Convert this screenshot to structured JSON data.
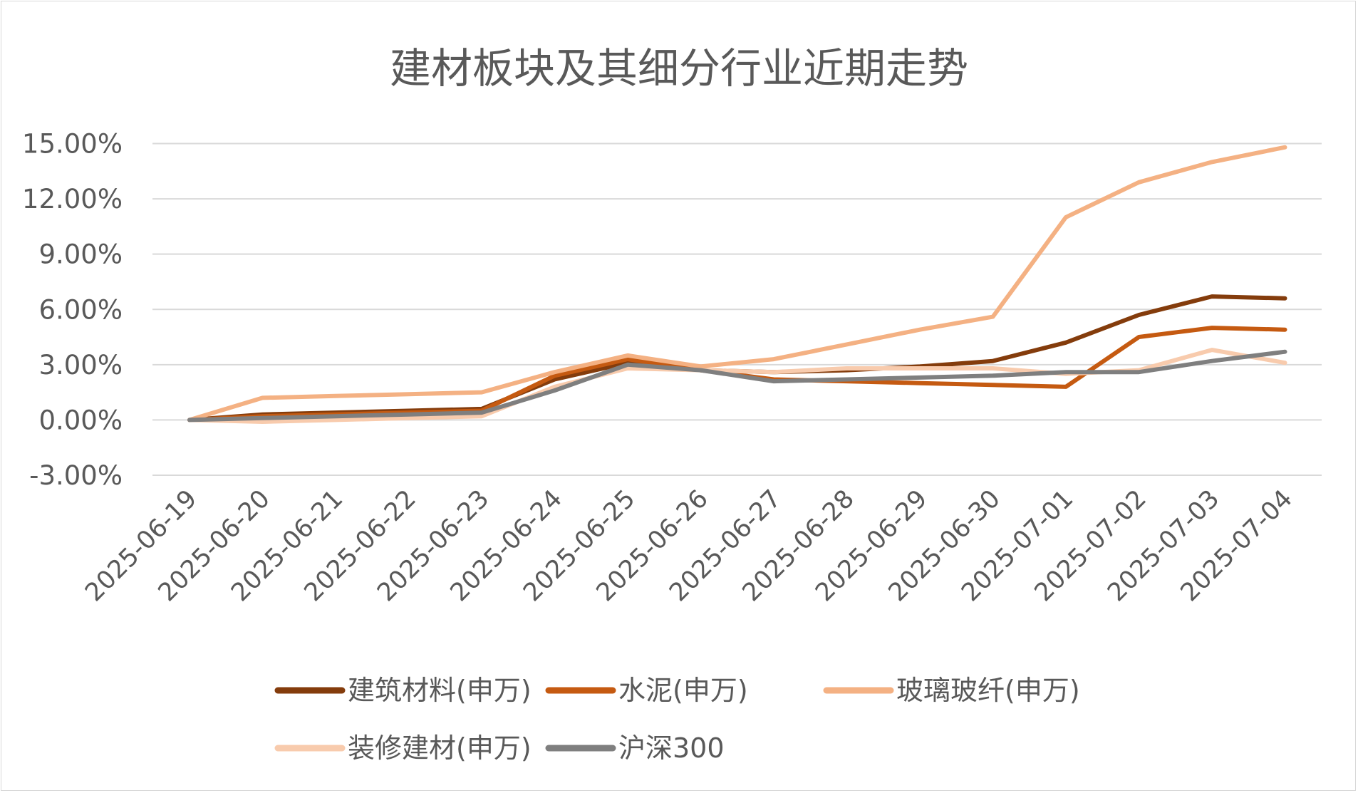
{
  "chart_data": {
    "type": "line",
    "title": "建材板块及其细分行业近期走势",
    "xlabel": "",
    "ylabel": "",
    "x": [
      "2025-06-19",
      "2025-06-20",
      "2025-06-21",
      "2025-06-22",
      "2025-06-23",
      "2025-06-24",
      "2025-06-25",
      "2025-06-26",
      "2025-06-27",
      "2025-06-28",
      "2025-06-29",
      "2025-06-30",
      "2025-07-01",
      "2025-07-02",
      "2025-07-03",
      "2025-07-04"
    ],
    "y_ticks": [
      "15.00%",
      "12.00%",
      "9.00%",
      "6.00%",
      "3.00%",
      "0.00%",
      "-3.00%"
    ],
    "y_tick_values": [
      15,
      12,
      9,
      6,
      3,
      0,
      -3
    ],
    "ylim": [
      -3,
      15
    ],
    "grid": true,
    "legend_position": "bottom",
    "series": [
      {
        "name": "建筑材料(申万)",
        "color": "#843c0c",
        "values": [
          0.0,
          0.3,
          0.4,
          0.5,
          0.6,
          2.2,
          3.1,
          2.7,
          2.6,
          2.7,
          2.9,
          3.2,
          4.2,
          5.7,
          6.7,
          6.6
        ]
      },
      {
        "name": "水泥(申万)",
        "color": "#c55a11",
        "values": [
          0.0,
          0.2,
          0.3,
          0.4,
          0.5,
          2.4,
          3.3,
          2.7,
          2.2,
          2.1,
          2.0,
          1.9,
          1.8,
          4.5,
          5.0,
          4.9
        ]
      },
      {
        "name": "玻璃玻纤(申万)",
        "color": "#f4b183",
        "values": [
          0.0,
          1.2,
          1.3,
          1.4,
          1.5,
          2.6,
          3.5,
          2.9,
          3.3,
          4.1,
          4.9,
          5.6,
          11.0,
          12.9,
          14.0,
          14.8
        ]
      },
      {
        "name": "装修建材(申万)",
        "color": "#f8cbad",
        "values": [
          0.0,
          -0.1,
          0.0,
          0.1,
          0.2,
          1.8,
          2.8,
          2.7,
          2.6,
          2.8,
          2.8,
          2.8,
          2.5,
          2.7,
          3.8,
          3.1
        ]
      },
      {
        "name": "沪深300",
        "color": "#7f7f7f",
        "values": [
          0.0,
          0.1,
          0.2,
          0.3,
          0.4,
          1.6,
          3.0,
          2.7,
          2.1,
          2.2,
          2.3,
          2.4,
          2.6,
          2.6,
          3.2,
          3.7
        ]
      }
    ]
  }
}
